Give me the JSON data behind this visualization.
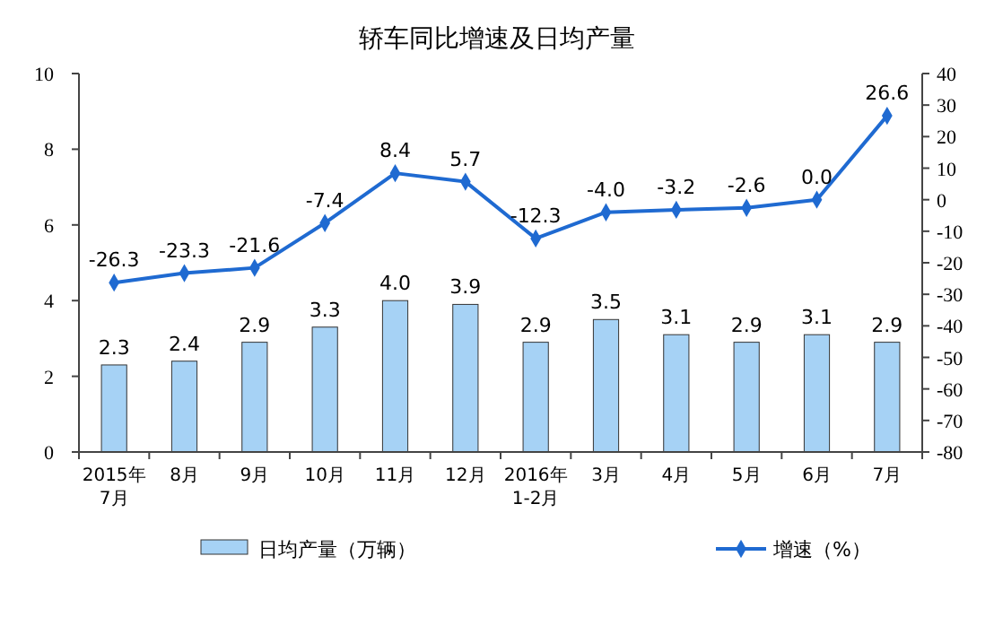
{
  "chart_data": {
    "type": "bar",
    "title": "轿车同比增速及日均产量",
    "categories": [
      "2015年\n7月",
      "8月",
      "9月",
      "10月",
      "11月",
      "12月",
      "2016年\n1-2月",
      "3月",
      "4月",
      "5月",
      "6月",
      "7月"
    ],
    "series": [
      {
        "name": "日均产量（万辆）",
        "color": "#a6d2f5",
        "values": [
          2.3,
          2.4,
          2.9,
          3.3,
          4.0,
          3.9,
          2.9,
          3.5,
          3.1,
          2.9,
          3.1,
          2.9
        ],
        "value_labels": [
          "2.3",
          "2.4",
          "2.9",
          "3.3",
          "4.0",
          "3.9",
          "2.9",
          "3.5",
          "3.1",
          "2.9",
          "3.1",
          "2.9"
        ]
      },
      {
        "name": "增速（%）",
        "type": "line",
        "axis": "y2",
        "color": "#1f6ad1",
        "values": [
          -26.3,
          -23.3,
          -21.6,
          -7.4,
          8.4,
          5.7,
          -12.3,
          -4.0,
          -3.2,
          -2.6,
          0.0,
          26.6
        ],
        "value_labels": [
          "-26.3",
          "-23.3",
          "-21.6",
          "-7.4",
          "8.4",
          "5.7",
          "-12.3",
          "-4.0",
          "-3.2",
          "-2.6",
          "0.0",
          "26.6"
        ]
      }
    ],
    "ylim": [
      0,
      10
    ],
    "yticks": [
      0,
      2,
      4,
      6,
      8,
      10
    ],
    "y2lim": [
      -80,
      40
    ],
    "y2ticks": [
      -80,
      -70,
      -60,
      -50,
      -40,
      -30,
      -20,
      -10,
      0,
      10,
      20,
      30,
      40
    ],
    "data_labels": true,
    "marker": "diamond",
    "legend": "bottom",
    "grid": false
  }
}
